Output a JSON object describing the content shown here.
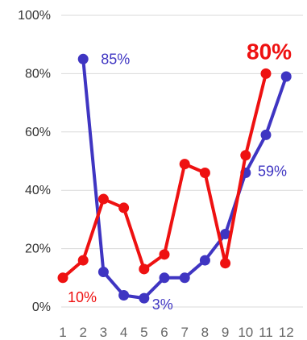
{
  "chart_data": {
    "type": "line",
    "x": [
      1,
      2,
      3,
      4,
      5,
      6,
      7,
      8,
      9,
      10,
      11,
      12
    ],
    "ylim": [
      0,
      100
    ],
    "y_ticks": [
      0,
      20,
      40,
      60,
      80,
      100
    ],
    "y_tick_labels": [
      "0%",
      "20%",
      "40%",
      "60%",
      "80%",
      "100%"
    ],
    "x_tick_labels": [
      "1",
      "2",
      "3",
      "4",
      "5",
      "6",
      "7",
      "8",
      "9",
      "10",
      "11",
      "12"
    ],
    "grid": true,
    "series": [
      {
        "color": "#3f35c2",
        "x": [
          2,
          3,
          4,
          5,
          6,
          7,
          8,
          9,
          10,
          11,
          12
        ],
        "values": [
          85,
          12,
          4,
          3,
          10,
          10,
          16,
          25,
          46,
          59,
          79
        ]
      },
      {
        "color": "#ee1111",
        "x": [
          1,
          2,
          3,
          4,
          5,
          6,
          7,
          8,
          9,
          10,
          11
        ],
        "values": [
          10,
          16,
          37,
          34,
          13,
          18,
          49,
          46,
          15,
          52,
          80
        ]
      }
    ],
    "annotations": [
      {
        "text": "85%",
        "series": 0,
        "x": 2,
        "color": "#3f35c2"
      },
      {
        "text": "3%",
        "series": 0,
        "x": 5,
        "color": "#3f35c2"
      },
      {
        "text": "59%",
        "series": 0,
        "x": 11,
        "color": "#3f35c2"
      },
      {
        "text": "10%",
        "series": 1,
        "x": 1,
        "color": "#ee1111"
      },
      {
        "text": "80%",
        "series": 1,
        "x": 11,
        "color": "#ee1111",
        "bold": true
      }
    ]
  }
}
